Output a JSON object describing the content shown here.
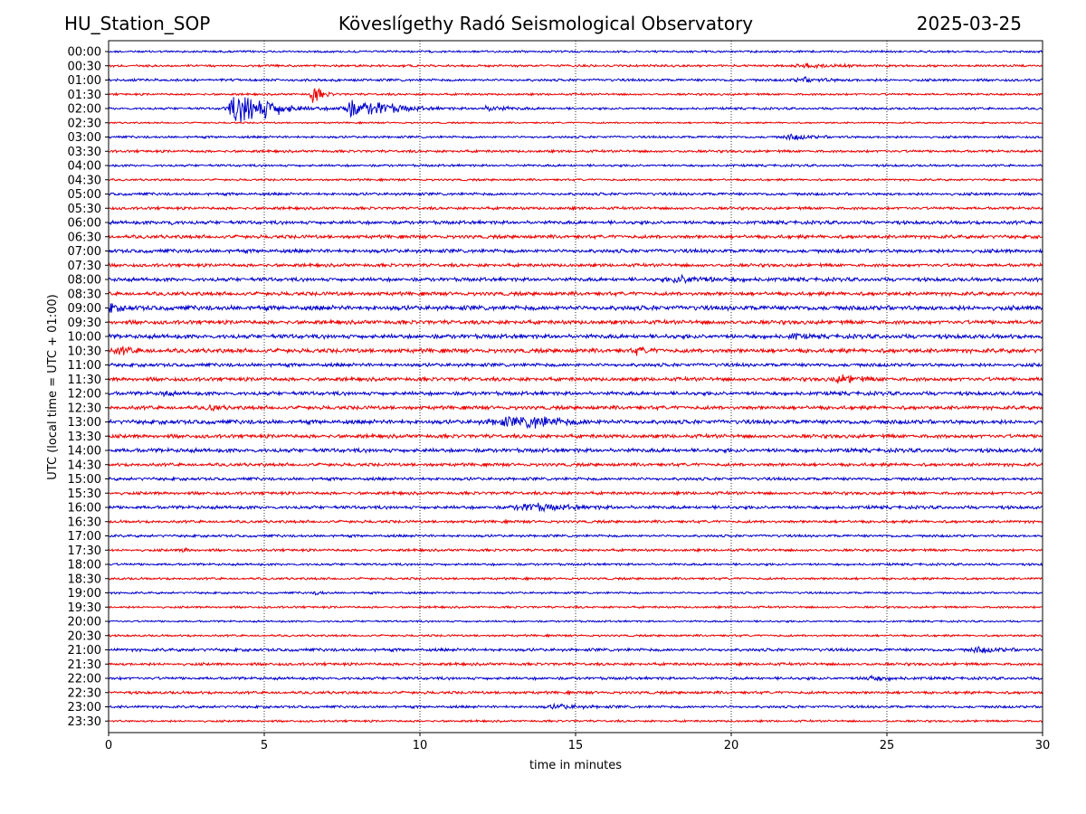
{
  "header": {
    "station": "HU_Station_SOP",
    "observatory": "Köveslígethy Radó Seismological Observatory",
    "date": "2025-03-25"
  },
  "chart_data": {
    "type": "line",
    "title": "Köveslígethy Radó Seismological Observatory",
    "xlabel": "time in minutes",
    "ylabel": "UTC (local time = UTC + 01:00)",
    "xlim": [
      0,
      30
    ],
    "xticks": [
      0,
      5,
      10,
      15,
      20,
      25,
      30
    ],
    "grid": "vertical dotted lines at 5, 10, 15, 20, 25 minutes",
    "colors": {
      "even_rows": "#0000cc",
      "odd_rows": "#ee0000",
      "grid": "#000000"
    },
    "rows": [
      {
        "label": "00:00",
        "amp": 0.9,
        "events": []
      },
      {
        "label": "00:30",
        "amp": 1.0,
        "events": [
          {
            "t": 22.5,
            "a": 1.5,
            "w": 0.5
          }
        ]
      },
      {
        "label": "01:00",
        "amp": 1.1,
        "events": [
          {
            "t": 22.4,
            "a": 1.6,
            "w": 0.5
          }
        ]
      },
      {
        "label": "01:30",
        "amp": 0.9,
        "events": [
          {
            "t": 6.6,
            "a": 9,
            "w": 0.15
          }
        ]
      },
      {
        "label": "02:00",
        "amp": 1.0,
        "events": [
          {
            "t": 4.1,
            "a": 11,
            "w": 0.35
          },
          {
            "t": 4.5,
            "a": 9,
            "w": 0.3
          },
          {
            "t": 5.2,
            "a": 4,
            "w": 0.6
          },
          {
            "t": 7.8,
            "a": 7,
            "w": 0.4
          },
          {
            "t": 8.7,
            "a": 4,
            "w": 0.6
          },
          {
            "t": 12.3,
            "a": 2,
            "w": 0.4
          }
        ]
      },
      {
        "label": "02:30",
        "amp": 0.7,
        "events": []
      },
      {
        "label": "03:00",
        "amp": 1.0,
        "events": [
          {
            "t": 22.0,
            "a": 2,
            "w": 0.4
          }
        ]
      },
      {
        "label": "03:30",
        "amp": 1.1,
        "events": []
      },
      {
        "label": "04:00",
        "amp": 1.0,
        "events": []
      },
      {
        "label": "04:30",
        "amp": 0.9,
        "events": []
      },
      {
        "label": "05:00",
        "amp": 1.2,
        "events": []
      },
      {
        "label": "05:30",
        "amp": 1.2,
        "events": []
      },
      {
        "label": "06:00",
        "amp": 1.5,
        "events": [
          {
            "t": 1.9,
            "a": 2.5,
            "w": 0.1
          }
        ]
      },
      {
        "label": "06:30",
        "amp": 1.5,
        "events": []
      },
      {
        "label": "07:00",
        "amp": 1.6,
        "events": []
      },
      {
        "label": "07:30",
        "amp": 1.4,
        "events": []
      },
      {
        "label": "08:00",
        "amp": 1.6,
        "events": [
          {
            "t": 18.5,
            "a": 2.8,
            "w": 0.6
          }
        ]
      },
      {
        "label": "08:30",
        "amp": 1.6,
        "events": []
      },
      {
        "label": "09:00",
        "amp": 2.0,
        "events": [
          {
            "t": 0.1,
            "a": 3,
            "w": 0.2
          }
        ]
      },
      {
        "label": "09:30",
        "amp": 1.7,
        "events": []
      },
      {
        "label": "10:00",
        "amp": 1.8,
        "events": [
          {
            "t": 22.0,
            "a": 2.5,
            "w": 0.15
          }
        ]
      },
      {
        "label": "10:30",
        "amp": 1.8,
        "events": [
          {
            "t": 0.4,
            "a": 2.5,
            "w": 0.3
          },
          {
            "t": 17.0,
            "a": 2.5,
            "w": 0.2
          }
        ]
      },
      {
        "label": "11:00",
        "amp": 1.5,
        "events": []
      },
      {
        "label": "11:30",
        "amp": 1.6,
        "events": [
          {
            "t": 23.6,
            "a": 3,
            "w": 0.4
          }
        ]
      },
      {
        "label": "12:00",
        "amp": 1.6,
        "events": [
          {
            "t": 1.8,
            "a": 2.5,
            "w": 0.1
          }
        ]
      },
      {
        "label": "12:30",
        "amp": 1.6,
        "events": [
          {
            "t": 3.3,
            "a": 2.5,
            "w": 0.15
          }
        ]
      },
      {
        "label": "13:00",
        "amp": 1.8,
        "events": [
          {
            "t": 12.8,
            "a": 3,
            "w": 0.8
          },
          {
            "t": 13.7,
            "a": 3.5,
            "w": 0.5
          }
        ]
      },
      {
        "label": "13:30",
        "amp": 1.6,
        "events": []
      },
      {
        "label": "14:00",
        "amp": 1.7,
        "events": []
      },
      {
        "label": "14:30",
        "amp": 1.4,
        "events": []
      },
      {
        "label": "15:00",
        "amp": 1.3,
        "events": []
      },
      {
        "label": "15:30",
        "amp": 1.3,
        "events": []
      },
      {
        "label": "16:00",
        "amp": 1.4,
        "events": [
          {
            "t": 13.6,
            "a": 3,
            "w": 0.7
          }
        ]
      },
      {
        "label": "16:30",
        "amp": 1.2,
        "events": []
      },
      {
        "label": "17:00",
        "amp": 1.1,
        "events": []
      },
      {
        "label": "17:30",
        "amp": 1.1,
        "events": [
          {
            "t": 2.4,
            "a": 2,
            "w": 0.1
          }
        ]
      },
      {
        "label": "18:00",
        "amp": 1.0,
        "events": []
      },
      {
        "label": "18:30",
        "amp": 1.0,
        "events": []
      },
      {
        "label": "19:00",
        "amp": 0.9,
        "events": [
          {
            "t": 6.7,
            "a": 2,
            "w": 0.1
          }
        ]
      },
      {
        "label": "19:30",
        "amp": 0.9,
        "events": []
      },
      {
        "label": "20:00",
        "amp": 0.8,
        "events": []
      },
      {
        "label": "20:30",
        "amp": 0.9,
        "events": []
      },
      {
        "label": "21:00",
        "amp": 1.3,
        "events": [
          {
            "t": 28.0,
            "a": 2,
            "w": 0.4
          }
        ]
      },
      {
        "label": "21:30",
        "amp": 1.2,
        "events": []
      },
      {
        "label": "22:00",
        "amp": 1.2,
        "events": [
          {
            "t": 24.5,
            "a": 1.8,
            "w": 0.4
          }
        ]
      },
      {
        "label": "22:30",
        "amp": 1.2,
        "events": []
      },
      {
        "label": "23:00",
        "amp": 1.1,
        "events": [
          {
            "t": 14.5,
            "a": 1.6,
            "w": 0.5
          }
        ]
      },
      {
        "label": "23:30",
        "amp": 0.9,
        "events": []
      }
    ]
  }
}
